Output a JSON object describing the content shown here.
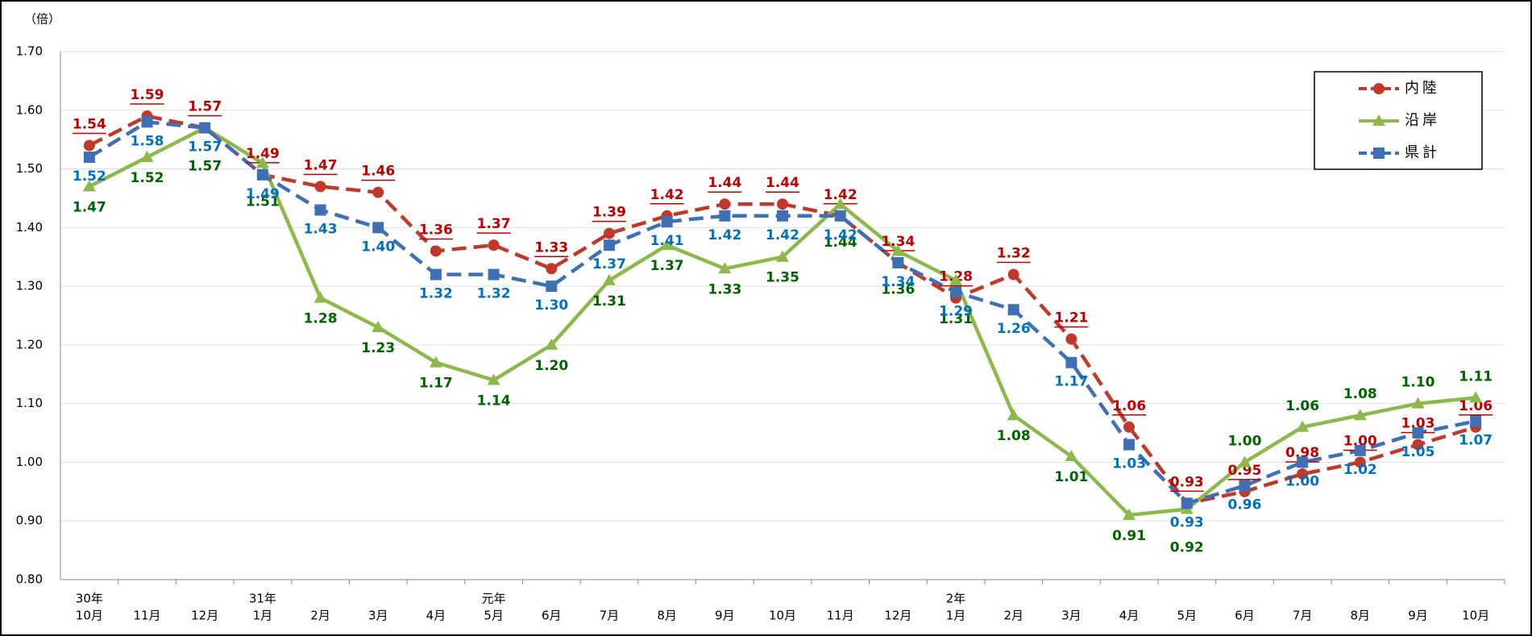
{
  "chart_data": {
    "type": "line",
    "y_unit_label": "（倍）",
    "categories": [
      "10月",
      "11月",
      "12月",
      "1月",
      "2月",
      "3月",
      "4月",
      "5月",
      "6月",
      "7月",
      "8月",
      "9月",
      "10月",
      "11月",
      "12月",
      "1月",
      "2月",
      "3月",
      "4月",
      "5月",
      "6月",
      "7月",
      "8月",
      "9月",
      "10月"
    ],
    "category_years": [
      "30年",
      null,
      null,
      "31年",
      null,
      null,
      null,
      "元年",
      null,
      null,
      null,
      null,
      null,
      null,
      null,
      "2年",
      null,
      null,
      null,
      null,
      null,
      null,
      null,
      null,
      null
    ],
    "ylim": [
      0.8,
      1.7
    ],
    "yticks": [
      {
        "value": 0.8,
        "label": "0.80"
      },
      {
        "value": 0.9,
        "label": "0.90"
      },
      {
        "value": 1.0,
        "label": "1.00"
      },
      {
        "value": 1.1,
        "label": "1.10"
      },
      {
        "value": 1.2,
        "label": "1.20"
      },
      {
        "value": 1.3,
        "label": "1.30"
      },
      {
        "value": 1.4,
        "label": "1.40"
      },
      {
        "value": 1.5,
        "label": "1.50"
      },
      {
        "value": 1.6,
        "label": "1.60"
      },
      {
        "value": 1.7,
        "label": "1.70"
      }
    ],
    "grid": true,
    "legend": "top-right",
    "series": [
      {
        "name": "内陸",
        "color": "#c0392b",
        "label_color": "#c00000",
        "dash": true,
        "marker": "circle",
        "underline": true,
        "values": [
          1.54,
          1.59,
          1.57,
          1.49,
          1.47,
          1.46,
          1.36,
          1.37,
          1.33,
          1.39,
          1.42,
          1.44,
          1.44,
          1.42,
          1.34,
          1.28,
          1.32,
          1.21,
          1.06,
          0.93,
          0.95,
          0.98,
          1.0,
          1.03,
          1.06
        ],
        "value_labels": [
          "1.54",
          "1.59",
          "1.57",
          "1.49",
          "1.47",
          "1.46",
          "1.36",
          "1.37",
          "1.33",
          "1.39",
          "1.42",
          "1.44",
          "1.44",
          "1.42",
          "1.34",
          "1.28",
          "1.32",
          "1.21",
          "1.06",
          "0.93",
          "0.95",
          "0.98",
          "1.00",
          "1.03",
          "1.06"
        ]
      },
      {
        "name": "沿岸",
        "color": "#8db84a",
        "label_color": "#006400",
        "dash": false,
        "marker": "triangle",
        "underline": false,
        "values": [
          1.47,
          1.52,
          1.57,
          1.51,
          1.28,
          1.23,
          1.17,
          1.14,
          1.2,
          1.31,
          1.37,
          1.33,
          1.35,
          1.44,
          1.36,
          1.31,
          1.08,
          1.01,
          0.91,
          0.92,
          1.0,
          1.06,
          1.08,
          1.1,
          1.11
        ],
        "value_labels": [
          "1.47",
          "1.52",
          "1.57",
          "1.51",
          "1.28",
          "1.23",
          "1.17",
          "1.14",
          "1.20",
          "1.31",
          "1.37",
          "1.33",
          "1.35",
          "1.44",
          "1.36",
          "1.31",
          "1.08",
          "1.01",
          "0.91",
          "0.92",
          "1.00",
          "1.06",
          "1.08",
          "1.10",
          "1.11"
        ]
      },
      {
        "name": "県計",
        "color": "#3f6fb5",
        "label_color": "#0070c0",
        "dash": true,
        "marker": "square",
        "underline": false,
        "values": [
          1.52,
          1.58,
          1.57,
          1.49,
          1.43,
          1.4,
          1.32,
          1.32,
          1.3,
          1.37,
          1.41,
          1.42,
          1.42,
          1.42,
          1.34,
          1.29,
          1.26,
          1.17,
          1.03,
          0.93,
          0.96,
          1.0,
          1.02,
          1.05,
          1.07
        ],
        "value_labels": [
          "1.52",
          "1.58",
          "1.57",
          "1.49",
          "1.43",
          "1.40",
          "1.32",
          "1.32",
          "1.30",
          "1.37",
          "1.41",
          "1.42",
          "1.42",
          "1.42",
          "1.34",
          "1.29",
          "1.26",
          "1.17",
          "1.03",
          "0.93",
          "0.96",
          "1.00",
          "1.02",
          "1.05",
          "1.07"
        ]
      }
    ]
  }
}
